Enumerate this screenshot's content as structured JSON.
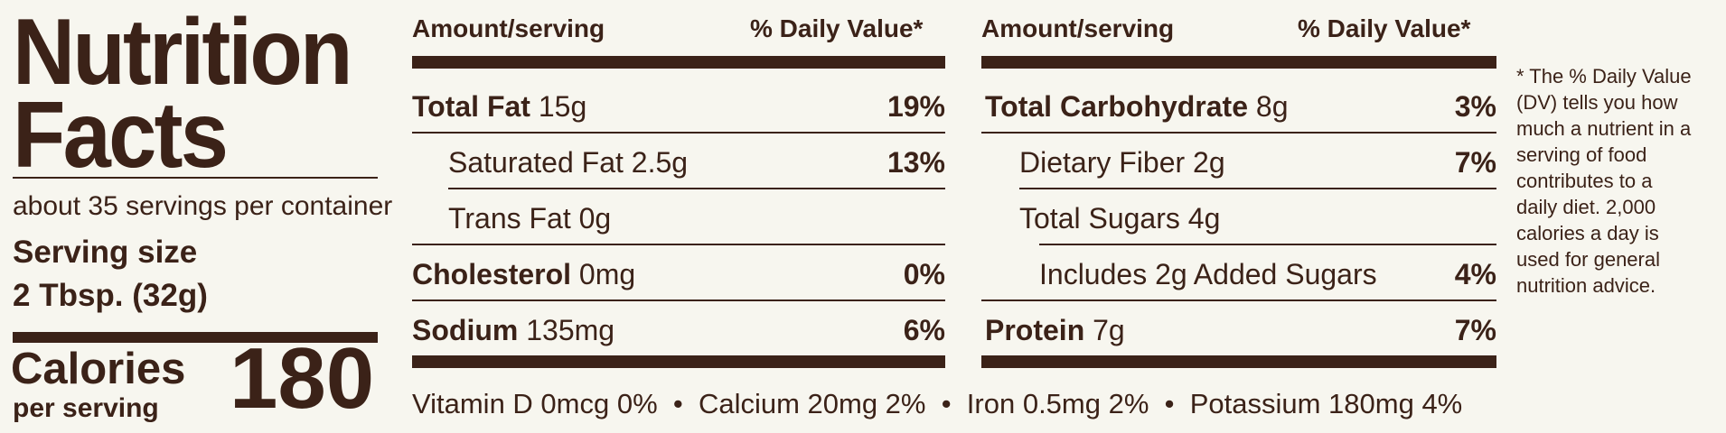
{
  "title_line1": "Nutrition",
  "title_line2": "Facts",
  "servings_per_container": "about 35 servings per container",
  "serving_size_label": "Serving size",
  "serving_size_value": "2 Tbsp. (32g)",
  "calories_label": "Calories",
  "calories_sub": "per serving",
  "calories_value": "180",
  "left_col": {
    "header_amount": "Amount/serving",
    "header_dv": "% Daily Value*",
    "rows": [
      {
        "name": "Total Fat",
        "amount": "15g",
        "dv": "19%"
      },
      {
        "name": "Saturated Fat",
        "amount": "2.5g",
        "dv": "13%"
      },
      {
        "name": "Trans Fat",
        "amount": "0g",
        "dv": ""
      },
      {
        "name": "Cholesterol",
        "amount": "0mg",
        "dv": "0%"
      },
      {
        "name": "Sodium",
        "amount": "135mg",
        "dv": "6%"
      }
    ]
  },
  "right_col": {
    "header_amount": "Amount/serving",
    "header_dv": "% Daily Value*",
    "rows": [
      {
        "name": "Total Carbohydrate",
        "amount": "8g",
        "dv": "3%"
      },
      {
        "name": "Dietary Fiber",
        "amount": "2g",
        "dv": "7%"
      },
      {
        "name": "Total Sugars",
        "amount": "4g",
        "dv": ""
      },
      {
        "name": "Includes 2g Added Sugars",
        "amount": "",
        "dv": "4%"
      },
      {
        "name": "Protein",
        "amount": "7g",
        "dv": "7%"
      }
    ]
  },
  "footer": "Vitamin D 0mcg 0%  •  Calcium 20mg 2%  •  Iron 0.5mg 2%  •  Potassium 180mg 4%",
  "footnote": "* The % Daily Value (DV) tells you how much a nutrient in a serving of food contributes to a daily diet. 2,000 calories a day is used for general nutrition advice.",
  "colors": {
    "ink": "#3b2218",
    "background": "#f7f6ef"
  }
}
